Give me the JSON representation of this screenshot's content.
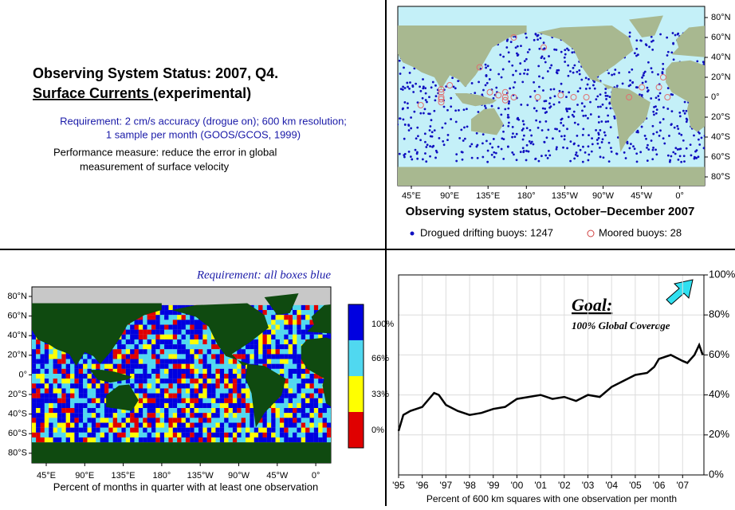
{
  "header": {
    "title_line1": "Observing System Status:  2007, Q4.",
    "title_line2_underlined": "Surface Currents ",
    "title_line2_rest": "(experimental)",
    "requirement_lines": [
      "Requirement: 2 cm/s accuracy (drogue on); 600 km resolution;",
      "1 sample per month (GOOS/GCOS, 1999)"
    ],
    "performance_lines": [
      "Performance measure: reduce the error in global",
      "measurement of surface velocity"
    ]
  },
  "buoy_map": {
    "lat_labels": [
      "80°N",
      "60°N",
      "40°N",
      "20°N",
      "0°",
      "20°S",
      "40°S",
      "60°S",
      "80°S"
    ],
    "lon_labels": [
      "45°E",
      "90°E",
      "135°E",
      "180°",
      "135°W",
      "90°W",
      "45°W",
      "0°"
    ],
    "caption": "Observing system status, October–December 2007",
    "legend": [
      "Drogued drifting buoys: 1247",
      "Moored buoys: 28"
    ]
  },
  "coverage_map": {
    "annotation": "Requirement: all boxes blue",
    "lat_labels": [
      "80°N",
      "60°N",
      "40°N",
      "20°N",
      "0°",
      "20°S",
      "40°S",
      "60°S",
      "80°S"
    ],
    "lon_labels": [
      "45°E",
      "90°E",
      "135°E",
      "180°",
      "135°W",
      "90°W",
      "45°W",
      "0°"
    ],
    "colorbar_labels": [
      "100%",
      "66%",
      "33%",
      "0%"
    ],
    "caption": "Percent of months in quarter with at least one observation"
  },
  "chart_data": {
    "type": "line",
    "annotation_title": "Goal:",
    "annotation_subtitle": "100% Global Coverage",
    "x_label": "Percent of 600 km squares with one observation per month",
    "x": [
      1995.0,
      1995.2,
      1995.5,
      1996.0,
      1996.5,
      1996.7,
      1997.0,
      1997.5,
      1998.0,
      1998.5,
      1999.0,
      1999.5,
      2000.0,
      2000.5,
      2001.0,
      2001.5,
      2002.0,
      2002.5,
      2003.0,
      2003.5,
      2004.0,
      2004.5,
      2005.0,
      2005.5,
      2005.8,
      2006.0,
      2006.5,
      2007.0,
      2007.2,
      2007.5,
      2007.7,
      2007.85
    ],
    "values": [
      22,
      30,
      32,
      34,
      41,
      40,
      35,
      32,
      30,
      31,
      33,
      34,
      38,
      39,
      40,
      38,
      39,
      37,
      40,
      39,
      44,
      47,
      50,
      51,
      54,
      58,
      60,
      57,
      56,
      60,
      65,
      60
    ],
    "color": "#000000",
    "xlim": [
      1995,
      2007.9
    ],
    "xticks": [
      {
        "value": 1995,
        "label": "'95"
      },
      {
        "value": 1996,
        "label": "'96"
      },
      {
        "value": 1997,
        "label": "'97"
      },
      {
        "value": 1998,
        "label": "'98"
      },
      {
        "value": 1999,
        "label": "'99"
      },
      {
        "value": 2000,
        "label": "'00"
      },
      {
        "value": 2001,
        "label": "'01"
      },
      {
        "value": 2002,
        "label": "'02"
      },
      {
        "value": 2003,
        "label": "'03"
      },
      {
        "value": 2004,
        "label": "'04"
      },
      {
        "value": 2005,
        "label": "'05"
      },
      {
        "value": 2006,
        "label": "'06"
      },
      {
        "value": 2007,
        "label": "'07"
      }
    ],
    "ylim": [
      0,
      100
    ],
    "yticks": [
      {
        "value": 0,
        "label": "0%"
      },
      {
        "value": 20,
        "label": "20%"
      },
      {
        "value": 40,
        "label": "40%"
      },
      {
        "value": 60,
        "label": "60%"
      },
      {
        "value": 80,
        "label": "80%"
      },
      {
        "value": 100,
        "label": "100%"
      }
    ],
    "grid": true
  }
}
